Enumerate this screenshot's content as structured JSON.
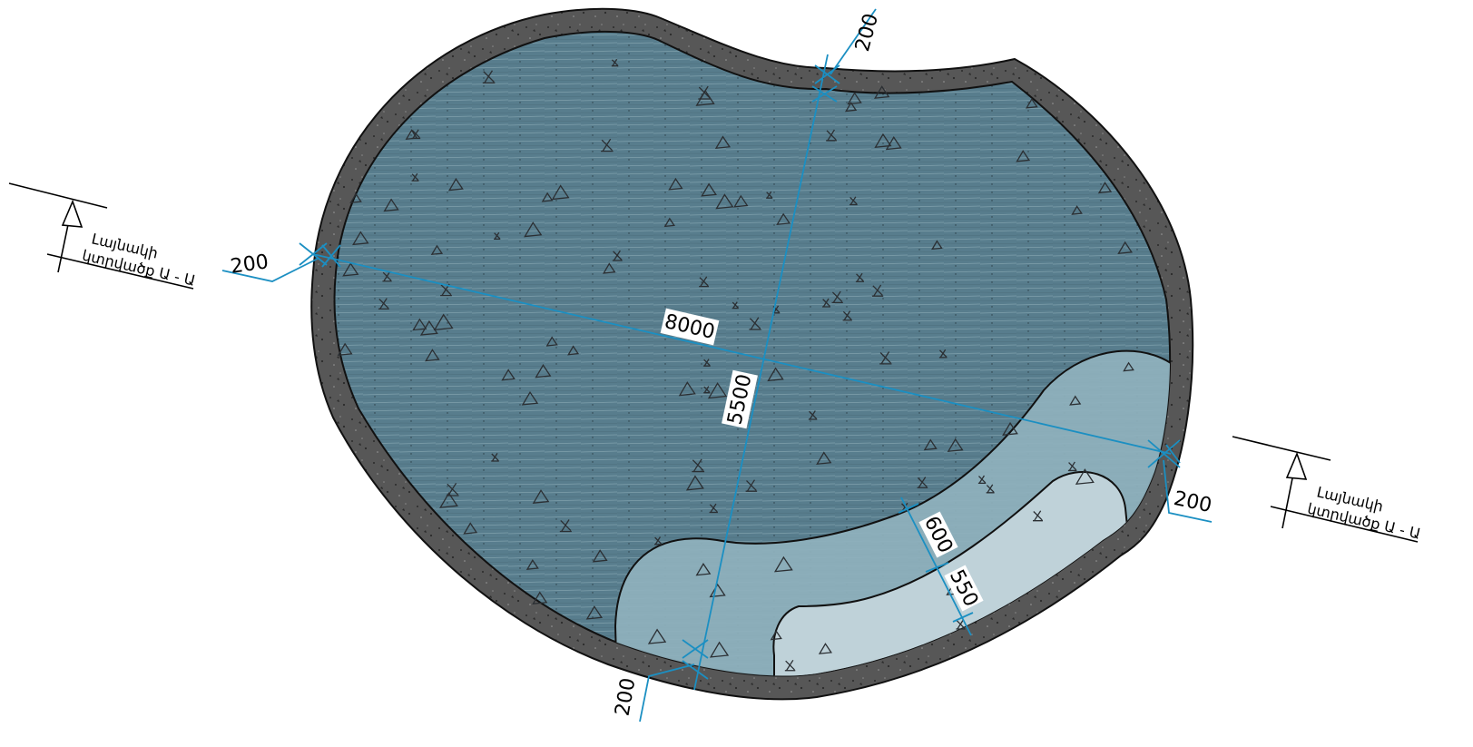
{
  "dimensions": {
    "wall_top": "200",
    "wall_left": "200",
    "wall_right": "200",
    "wall_bottom": "200",
    "length": "8000",
    "width": "5500",
    "step_upper": "600",
    "step_lower": "550"
  },
  "section_marker": {
    "line1": "Լայնակի",
    "line2": "կտրվածք Ա - Ա"
  },
  "colors": {
    "wall": "#555555",
    "water_deep": "#587d8d",
    "water_step1": "#8fb1bd",
    "water_step2": "#c3d5db",
    "dimension": "#1b8fc2",
    "outline": "#111111"
  }
}
